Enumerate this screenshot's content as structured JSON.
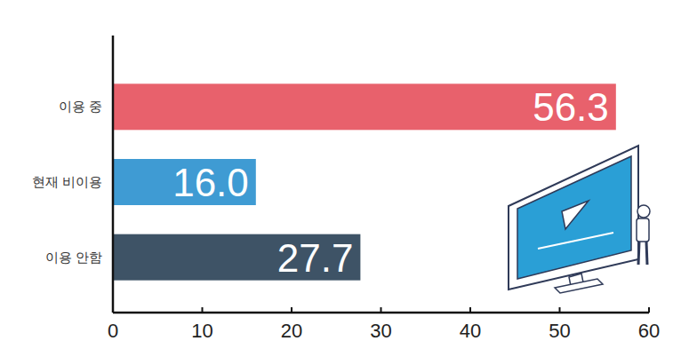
{
  "chart_data": {
    "type": "bar",
    "orientation": "horizontal",
    "categories": [
      "이용 중",
      "현재 비이용",
      "이용 안함"
    ],
    "values": [
      56.3,
      16.0,
      27.7
    ],
    "value_labels": [
      "56.3",
      "16.0",
      "27.7"
    ],
    "colors": [
      "#e8616c",
      "#3f9bd3",
      "#3e5366"
    ],
    "xlim": [
      0,
      60
    ],
    "xticks": [
      0,
      10,
      20,
      30,
      40,
      50,
      60
    ],
    "grid": false,
    "data_labels": true
  }
}
